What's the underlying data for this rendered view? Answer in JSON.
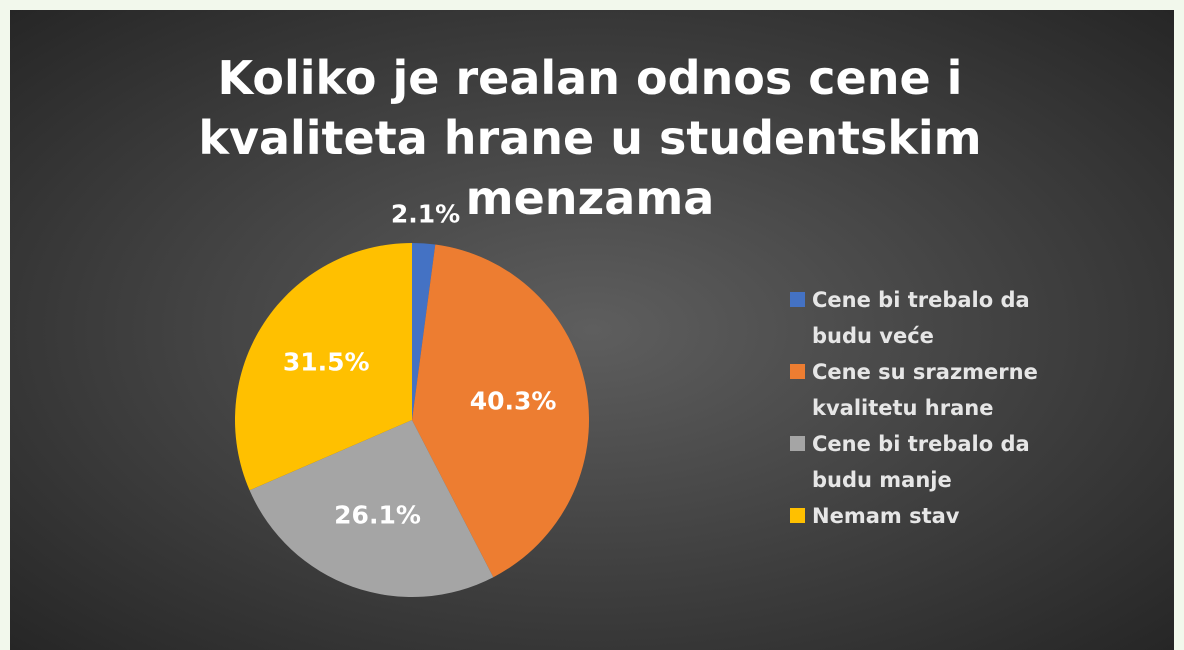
{
  "chart_data": {
    "type": "pie",
    "title": "Koliko je realan odnos cene i kvaliteta hrane u studentskim menzama",
    "categories": [
      "Cene bi trebalo da budu veće",
      "Cene su srazmerne kvalitetu hrane",
      "Cene bi trebalo da budu manje",
      "Nemam stav"
    ],
    "values": [
      2.1,
      40.3,
      26.1,
      31.5
    ],
    "value_labels": [
      "2.1%",
      "40.3%",
      "26.1%",
      "31.5%"
    ],
    "colors": [
      "#4472c4",
      "#ed7d31",
      "#a5a5a5",
      "#ffc000"
    ],
    "legend": "right"
  }
}
